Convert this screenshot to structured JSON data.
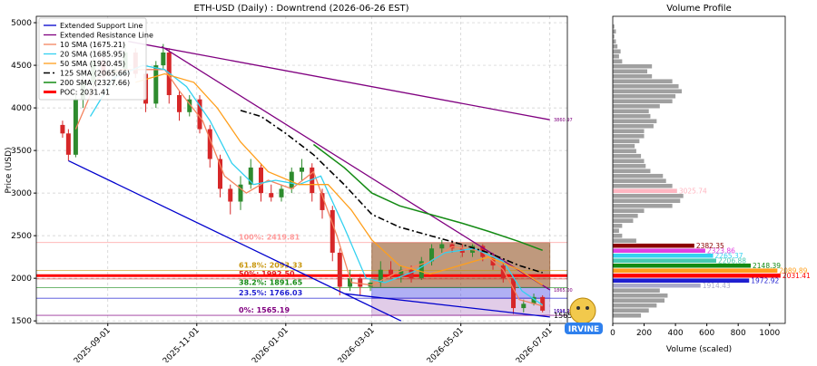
{
  "chart_data": [
    {
      "type": "candlestick",
      "title": "ETH-USD (Daily) : Downtrend (2026-06-26 EST)",
      "ylabel": "Price (USD)",
      "xlim": [
        "2025-07-14",
        "2026-07-13"
      ],
      "xticks": [
        "2025-09-01",
        "2025-11-01",
        "2026-01-01",
        "2026-03-01",
        "2026-05-01",
        "2026-07-01"
      ],
      "ylim": [
        1470,
        5075
      ],
      "yticks": [
        1500,
        2000,
        2500,
        3000,
        3500,
        4000,
        4500,
        5000
      ],
      "grid": true,
      "up_color": "#2e8b2e",
      "down_color": "#d62728",
      "candles": {
        "x": [
          "2025-08-01",
          "2025-08-05",
          "2025-08-10",
          "2025-08-15",
          "2025-08-22",
          "2025-08-29",
          "2025-09-06",
          "2025-09-13",
          "2025-09-20",
          "2025-09-27",
          "2025-10-04",
          "2025-10-09",
          "2025-10-13",
          "2025-10-20",
          "2025-10-27",
          "2025-11-03",
          "2025-11-10",
          "2025-11-17",
          "2025-11-24",
          "2025-12-01",
          "2025-12-08",
          "2025-12-15",
          "2025-12-22",
          "2025-12-29",
          "2026-01-05",
          "2026-01-12",
          "2026-01-19",
          "2026-01-26",
          "2026-02-02",
          "2026-02-07",
          "2026-02-14",
          "2026-02-21",
          "2026-02-28",
          "2026-03-07",
          "2026-03-14",
          "2026-03-21",
          "2026-03-28",
          "2026-04-04",
          "2026-04-11",
          "2026-04-18",
          "2026-04-25",
          "2026-05-02",
          "2026-05-09",
          "2026-05-16",
          "2026-05-23",
          "2026-05-30",
          "2026-06-06",
          "2026-06-13",
          "2026-06-20",
          "2026-06-26"
        ],
        "open": [
          3800,
          3700,
          3450,
          4100,
          4300,
          4550,
          4400,
          4450,
          4650,
          4400,
          4050,
          4500,
          4650,
          4150,
          3950,
          4100,
          3750,
          3400,
          3050,
          2900,
          3100,
          3300,
          3000,
          2950,
          3050,
          3250,
          3300,
          3000,
          2800,
          2300,
          1900,
          2000,
          1900,
          1950,
          2100,
          2050,
          2100,
          2000,
          2200,
          2350,
          2400,
          2350,
          2300,
          2380,
          2250,
          2150,
          2000,
          1650,
          1700,
          1780
        ],
        "high": [
          3850,
          3750,
          4150,
          4400,
          4700,
          4600,
          4500,
          4750,
          4700,
          4450,
          4550,
          4750,
          4700,
          4200,
          4150,
          4150,
          3800,
          3450,
          3100,
          3200,
          3400,
          3350,
          3100,
          3100,
          3300,
          3400,
          3350,
          3050,
          2850,
          2350,
          2100,
          2050,
          2000,
          2200,
          2200,
          2150,
          2150,
          2250,
          2400,
          2450,
          2450,
          2400,
          2400,
          2400,
          2300,
          2200,
          2050,
          1750,
          1820,
          1800
        ],
        "low": [
          3650,
          3380,
          3420,
          4000,
          4200,
          4350,
          4250,
          4400,
          4350,
          3950,
          4000,
          4450,
          4050,
          3850,
          3900,
          3700,
          3300,
          2950,
          2750,
          2800,
          3050,
          2900,
          2900,
          2900,
          3000,
          3150,
          2900,
          2700,
          2200,
          1800,
          1850,
          1800,
          1850,
          1900,
          2000,
          1950,
          1950,
          1980,
          2150,
          2300,
          2300,
          2250,
          2250,
          2200,
          2100,
          1950,
          1580,
          1600,
          1680,
          1600
        ],
        "close": [
          3700,
          3450,
          4100,
          4300,
          4550,
          4400,
          4450,
          4650,
          4400,
          4050,
          4500,
          4650,
          4150,
          3950,
          4100,
          3750,
          3400,
          3050,
          2900,
          3100,
          3300,
          3000,
          2950,
          3050,
          3250,
          3300,
          3000,
          2800,
          2300,
          1900,
          2000,
          1900,
          1950,
          2100,
          2050,
          2100,
          2000,
          2200,
          2350,
          2400,
          2350,
          2300,
          2380,
          2250,
          2150,
          2000,
          1650,
          1700,
          1780,
          1620
        ]
      },
      "series": [
        {
          "name": "Extended Support Line",
          "color": "#0000cd",
          "width": 1.3,
          "x": [
            "2025-08-05",
            "2026-03-21",
            null,
            "2026-02-10",
            "2026-07-01"
          ],
          "values": [
            3380,
            1500,
            null,
            1820,
            1545
          ]
        },
        {
          "name": "Extended Resistance Line",
          "color": "#800080",
          "width": 1.3,
          "x": [
            "2025-09-15",
            "2026-07-01",
            null,
            "2025-10-08",
            "2026-07-01"
          ],
          "values": [
            4780,
            3860.97,
            null,
            4720,
            1865
          ]
        },
        {
          "name": "10 SMA (1675.21)",
          "color": "#f4845f",
          "width": 1.3,
          "x": [
            "2025-08-10",
            "2025-08-25",
            "2025-09-10",
            "2025-09-25",
            "2025-10-10",
            "2025-10-20",
            "2025-11-05",
            "2025-11-20",
            "2025-12-05",
            "2025-12-20",
            "2026-01-05",
            "2026-01-20",
            "2026-02-05",
            "2026-02-15",
            "2026-03-01",
            "2026-03-20",
            "2026-04-10",
            "2026-04-25",
            "2026-05-15",
            "2026-05-30",
            "2026-06-10",
            "2026-06-26"
          ],
          "values": [
            3750,
            4350,
            4450,
            4450,
            4450,
            4200,
            3850,
            3200,
            3000,
            3150,
            3050,
            3250,
            2500,
            1950,
            1920,
            2080,
            2200,
            2370,
            2320,
            2100,
            1750,
            1675.21
          ]
        },
        {
          "name": "20 SMA (1685.95)",
          "color": "#33d1f0",
          "width": 1.3,
          "x": [
            "2025-08-20",
            "2025-09-05",
            "2025-09-25",
            "2025-10-10",
            "2025-10-25",
            "2025-11-10",
            "2025-11-25",
            "2025-12-10",
            "2025-12-25",
            "2026-01-10",
            "2026-01-25",
            "2026-02-10",
            "2026-02-25",
            "2026-03-10",
            "2026-03-30",
            "2026-04-20",
            "2026-05-10",
            "2026-05-30",
            "2026-06-12",
            "2026-06-26"
          ],
          "values": [
            3900,
            4350,
            4500,
            4450,
            4250,
            3850,
            3350,
            3100,
            3150,
            3100,
            3200,
            2600,
            2000,
            1950,
            2080,
            2300,
            2350,
            2200,
            1850,
            1685.95
          ]
        },
        {
          "name": "50 SMA (1920.45)",
          "color": "#ff9f1c",
          "width": 1.3,
          "x": [
            "2025-09-20",
            "2025-10-10",
            "2025-10-30",
            "2025-11-15",
            "2025-12-01",
            "2025-12-20",
            "2026-01-10",
            "2026-01-30",
            "2026-02-15",
            "2026-03-01",
            "2026-03-20",
            "2026-04-10",
            "2026-04-30",
            "2026-05-20",
            "2026-06-10",
            "2026-06-26"
          ],
          "values": [
            4300,
            4400,
            4300,
            4000,
            3600,
            3250,
            3100,
            3100,
            2800,
            2450,
            2150,
            2050,
            2150,
            2250,
            2100,
            1920.45
          ]
        },
        {
          "name": "125 SMA (2065.66)",
          "color": "#000000",
          "width": 1.6,
          "dash": "7 3 2 3",
          "x": [
            "2025-12-01",
            "2025-12-15",
            "2026-01-01",
            "2026-01-20",
            "2026-02-10",
            "2026-03-01",
            "2026-03-20",
            "2026-04-10",
            "2026-05-01",
            "2026-05-20",
            "2026-06-10",
            "2026-06-26"
          ],
          "values": [
            3970,
            3900,
            3700,
            3450,
            3100,
            2750,
            2600,
            2500,
            2400,
            2300,
            2150,
            2065.66
          ]
        },
        {
          "name": "200 SMA (2327.66)",
          "color": "#138a13",
          "width": 1.5,
          "x": [
            "2026-01-20",
            "2026-02-10",
            "2026-03-01",
            "2026-03-20",
            "2026-04-10",
            "2026-05-01",
            "2026-05-20",
            "2026-06-10",
            "2026-06-26"
          ],
          "values": [
            3570,
            3300,
            3000,
            2850,
            2750,
            2650,
            2550,
            2430,
            2327.66
          ]
        }
      ],
      "poc": {
        "name": "POC: 2031.41",
        "value": 2031.41,
        "color": "#ff0000",
        "width": 3
      },
      "fib_levels": [
        {
          "label": "100%: 2419.81",
          "value": 2419.81,
          "color": "#ff9999"
        },
        {
          "label": "61.8%: 2093.33",
          "value": 2093.33,
          "color": "#c8960c"
        },
        {
          "label": "50%: 1992.50",
          "value": 1992.5,
          "color": "#e02020"
        },
        {
          "label": "38.2%: 1891.65",
          "value": 1891.65,
          "color": "#138a13"
        },
        {
          "label": "23.5%: 1766.03",
          "value": 1766.03,
          "color": "#1f1fd0"
        },
        {
          "label": "0%: 1565.19",
          "value": 1565.19,
          "color": "#800080"
        }
      ],
      "zones": [
        {
          "x": [
            "2026-03-01",
            "2026-07-01"
          ],
          "y": [
            1891.65,
            2419.81
          ],
          "color": "rgba(139,69,19,0.55)"
        },
        {
          "x": [
            "2026-03-01",
            "2026-07-01"
          ],
          "y": [
            1766.03,
            1891.65
          ],
          "color": "rgba(80,80,230,0.45)"
        },
        {
          "x": [
            "2026-03-01",
            "2026-07-01"
          ],
          "y": [
            1565.19,
            1766.03
          ],
          "color": "rgba(170,110,190,0.35)"
        }
      ],
      "end_labels": [
        {
          "value": 3860.97,
          "color": "#800080"
        },
        {
          "value": 1865,
          "label": "1865.00",
          "color": "#800080"
        },
        {
          "value": 1618.95,
          "color": "#800080"
        },
        {
          "value": 1594.29,
          "color": "#1f1fd0"
        },
        {
          "value": 1565.33,
          "color": "#000000"
        }
      ],
      "logo_text": "IRVINE"
    },
    {
      "type": "barh",
      "title": "Volume Profile",
      "xlabel": "Volume (scaled)",
      "xlim": [
        0,
        1100
      ],
      "xticks": [
        0,
        200,
        400,
        600,
        800,
        1000
      ],
      "ylim": [
        1470,
        5075
      ],
      "color": "#a0a0a0",
      "price_levels": [
        1563,
        1622,
        1681,
        1739,
        1797,
        1856,
        {
          "value": 1914.43,
          "label": "1914.43",
          "color": "#a9a9c9"
        },
        {
          "value": 1972.92,
          "label": "1972.92",
          "color": "#1f1fd0"
        },
        {
          "value": 2031.41,
          "label": "2031.41",
          "color": "#ff0000"
        },
        {
          "value": 2089.89,
          "label": "2089.89",
          "color": "#ff9f1c"
        },
        {
          "value": 2148.39,
          "label": "2148.39",
          "color": "#138a13"
        },
        {
          "value": 2206.88,
          "label": "2206.88",
          "color": "#48c9b0"
        },
        {
          "value": 2265.37,
          "label": "2265.37",
          "color": "#33d1f0"
        },
        {
          "value": 2323.86,
          "label": "2323.86",
          "color": "#e040e0"
        },
        {
          "value": 2382.35,
          "label": "2382.35",
          "color": "#8b0000"
        },
        2441,
        2499,
        2558,
        2616,
        2675,
        2733,
        2792,
        2850,
        2909,
        2967,
        {
          "value": 3025.74,
          "label": "3025.74",
          "color": "#ffb6c1"
        },
        3084,
        3143,
        3201,
        3259,
        3318,
        3376,
        3435,
        3493,
        3552,
        3610,
        3669,
        3727,
        3786,
        3844,
        3903,
        3961,
        4020,
        4078,
        4137,
        4195,
        4254,
        4312,
        4371,
        4429,
        4488,
        4546,
        4605,
        4663,
        4722,
        4780,
        4839,
        4897,
        4956
      ],
      "values": [
        180,
        230,
        280,
        330,
        350,
        300,
        560,
        870,
        1070,
        1050,
        880,
        660,
        640,
        590,
        520,
        150,
        60,
        40,
        60,
        130,
        160,
        200,
        380,
        430,
        450,
        410,
        380,
        340,
        320,
        240,
        210,
        200,
        180,
        150,
        140,
        170,
        200,
        200,
        260,
        280,
        240,
        230,
        300,
        380,
        400,
        440,
        420,
        380,
        250,
        220,
        250,
        60,
        40,
        50,
        30,
        20,
        10,
        20,
        10
      ]
    }
  ]
}
